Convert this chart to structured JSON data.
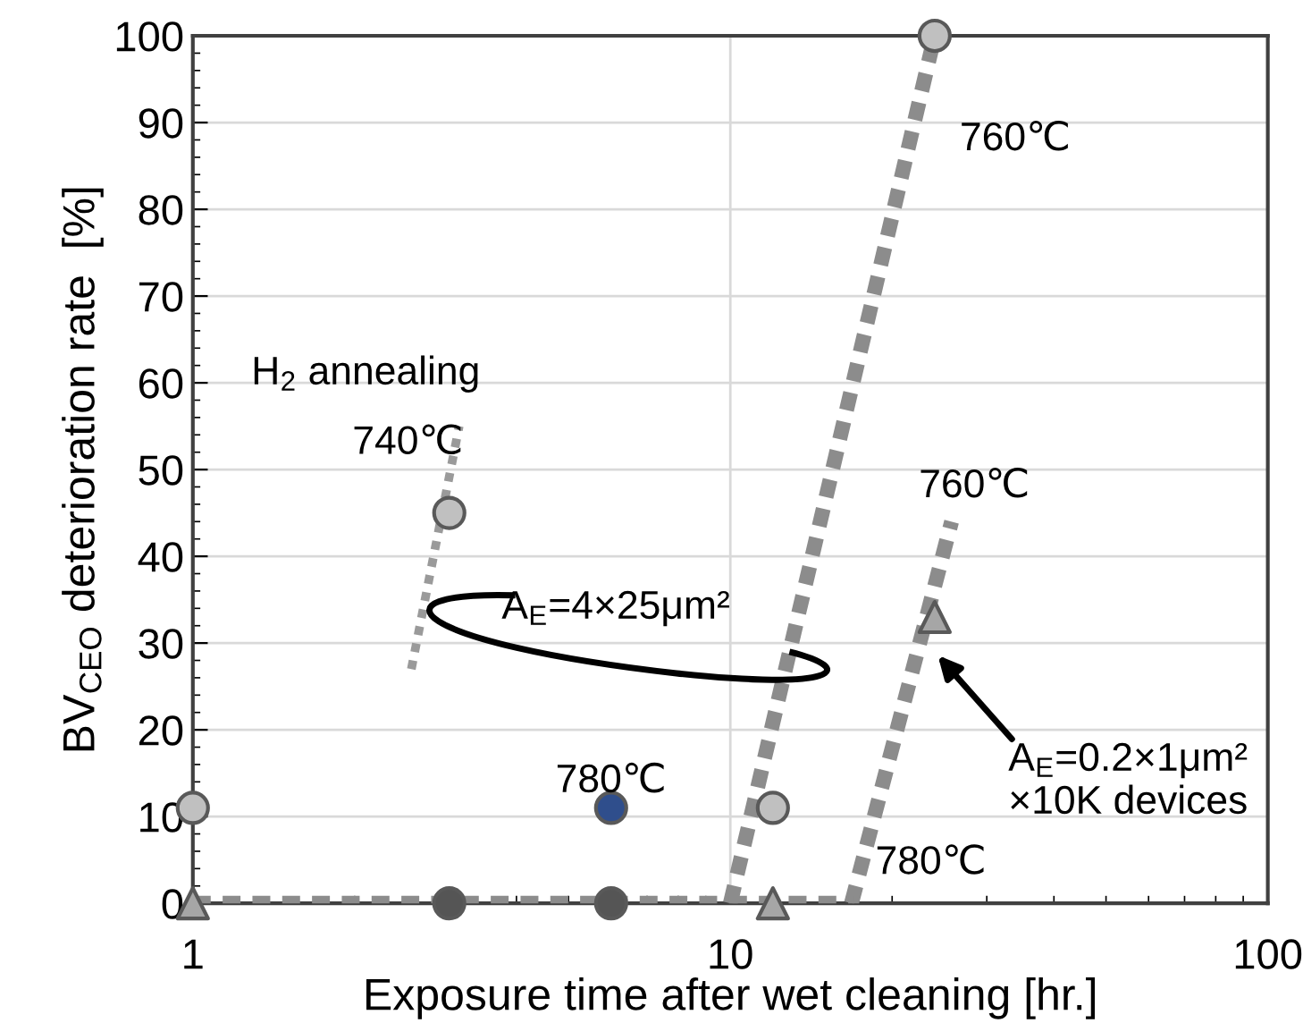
{
  "chart_data": {
    "type": "scatter",
    "xlabel": "Exposure time after wet cleaning [hr.]",
    "ylabel": "BV$_{CEO}$ deterioration rate  [%]",
    "log": "x",
    "xlim": [
      1,
      100
    ],
    "xticks": [
      1,
      10,
      100
    ],
    "ylim": [
      0,
      100
    ],
    "yticks": [
      0,
      10,
      20,
      30,
      40,
      50,
      60,
      70,
      80,
      90,
      100
    ],
    "grid": true,
    "series": [
      {
        "marker": "circle",
        "color": "#c0c0c0",
        "x": [
          1,
          3,
          12,
          24
        ],
        "values": [
          11,
          45,
          11,
          100
        ]
      },
      {
        "marker": "circle",
        "color": "#555555",
        "x": [
          3,
          6
        ],
        "values": [
          0,
          0
        ]
      },
      {
        "marker": "circle",
        "color": "#2f4e8c",
        "x": [
          6
        ],
        "values": [
          11
        ]
      },
      {
        "marker": "triangle",
        "color": "#a6a6a6",
        "x": [
          1,
          12,
          24
        ],
        "values": [
          0,
          0,
          33
        ]
      },
      {
        "type": "line",
        "line_style": "dotted",
        "color": "#9a9a9a",
        "x": [
          2.55,
          3.13
        ],
        "values": [
          27,
          55
        ]
      },
      {
        "type": "line",
        "line_style": "dashed",
        "color": "#8c8c8c",
        "x": [
          10,
          24
        ],
        "values": [
          0,
          100
        ]
      },
      {
        "type": "line",
        "line_style": "dashed",
        "color": "#8c8c8c",
        "x": [
          16.8,
          25.8
        ],
        "values": [
          0,
          44
        ]
      },
      {
        "type": "line",
        "line_style": "dashed",
        "color": "#8c8c8c",
        "x": [
          1,
          17
        ],
        "values": [
          0,
          0
        ]
      }
    ],
    "annotations": [
      "H$_{2}$ annealing",
      "740℃",
      "760℃",
      "760℃",
      "780℃",
      {
        "text": "780℃",
        "x": 16.8,
        "y": 0
      },
      {
        "text": "A$_{E}$=4×25μm²",
        "x": 2.7,
        "y": 35
      },
      "A$_{E}$=0.2×1μm²\n×10K devices"
    ]
  }
}
